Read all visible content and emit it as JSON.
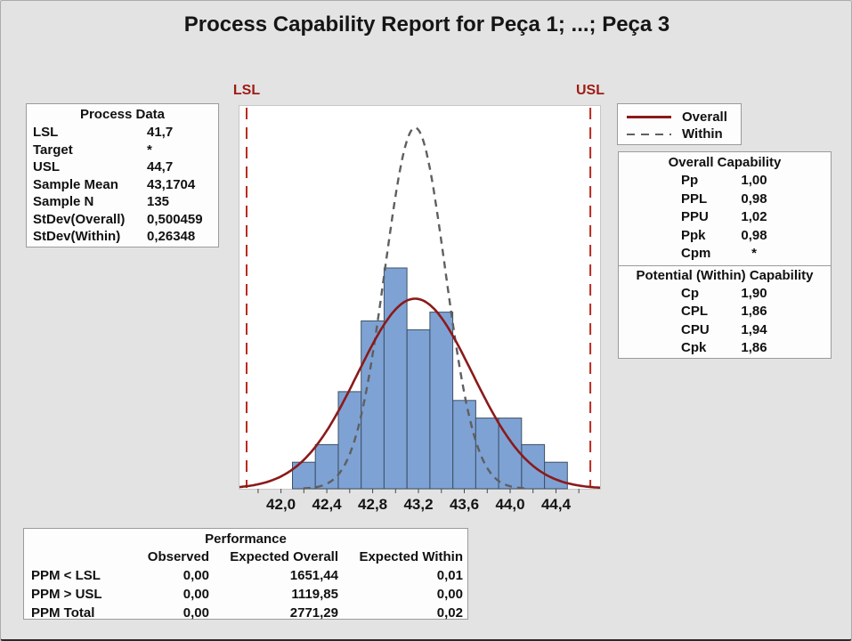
{
  "title": "Process Capability Report for Peça 1; ...; Peça 3",
  "spec_labels": {
    "lsl": "LSL",
    "usl": "USL"
  },
  "process_data": {
    "title": "Process Data",
    "rows": [
      {
        "label": "LSL",
        "value": "41,7"
      },
      {
        "label": "Target",
        "value": "*"
      },
      {
        "label": "USL",
        "value": "44,7"
      },
      {
        "label": "Sample Mean",
        "value": "43,1704"
      },
      {
        "label": "Sample N",
        "value": "135"
      },
      {
        "label": "StDev(Overall)",
        "value": "0,500459"
      },
      {
        "label": "StDev(Within)",
        "value": "0,26348"
      }
    ]
  },
  "legend": {
    "items": [
      {
        "label": "Overall",
        "line": "solid",
        "color": "#8B1A1A"
      },
      {
        "label": "Within",
        "line": "dashed",
        "color": "#5F5F5F"
      }
    ]
  },
  "capability": {
    "overall": {
      "title": "Overall Capability",
      "rows": [
        {
          "label": "Pp",
          "value": "1,00"
        },
        {
          "label": "PPL",
          "value": "0,98"
        },
        {
          "label": "PPU",
          "value": "1,02"
        },
        {
          "label": "Ppk",
          "value": "0,98"
        },
        {
          "label": "Cpm",
          "value": "*"
        }
      ]
    },
    "within": {
      "title": "Potential (Within) Capability",
      "rows": [
        {
          "label": "Cp",
          "value": "1,90"
        },
        {
          "label": "CPL",
          "value": "1,86"
        },
        {
          "label": "CPU",
          "value": "1,94"
        },
        {
          "label": "Cpk",
          "value": "1,86"
        }
      ]
    }
  },
  "performance": {
    "title": "Performance",
    "headers": [
      "Observed",
      "Expected Overall",
      "Expected Within"
    ],
    "rows": [
      {
        "label": "PPM < LSL",
        "observed": "0,00",
        "expected_overall": "1651,44",
        "expected_within": "0,01"
      },
      {
        "label": "PPM > USL",
        "observed": "0,00",
        "expected_overall": "1119,85",
        "expected_within": "0,00"
      },
      {
        "label": "PPM Total",
        "observed": "0,00",
        "expected_overall": "2771,29",
        "expected_within": "0,02"
      }
    ]
  },
  "chart_data": {
    "type": "histogram",
    "title": "Process Capability Report for Peça 1; ...; Peça 3",
    "bin_start": 42.1,
    "bin_width": 0.2,
    "bin_counts": [
      3,
      5,
      11,
      19,
      25,
      18,
      20,
      10,
      8,
      8,
      5,
      3
    ],
    "x_range": [
      41.64,
      44.79
    ],
    "x_ticks": {
      "labeled_values": [
        42.0,
        42.4,
        42.8,
        43.2,
        43.6,
        44.0,
        44.4
      ],
      "labels": [
        "42,0",
        "42,4",
        "42,8",
        "43,2",
        "43,6",
        "44,0",
        "44,4"
      ],
      "minor_step": 0.2,
      "minor_range": [
        41.8,
        44.6
      ]
    },
    "lsl": 41.7,
    "usl": 44.7,
    "sample_mean": 43.1704,
    "sample_n": 135,
    "stdev_overall": 0.500459,
    "stdev_within": 0.26348,
    "curves": [
      {
        "name": "Overall",
        "style": "solid",
        "color": "#8B1A1A",
        "width": 2.6
      },
      {
        "name": "Within",
        "style": "dashed",
        "color": "#5F5F5F",
        "width": 2.4
      }
    ],
    "bar_fill": "#7EA2D4",
    "bar_stroke": "#3D5166",
    "spec_line_color": "#BA2A20",
    "grid": false,
    "legend_position": "top-right"
  }
}
